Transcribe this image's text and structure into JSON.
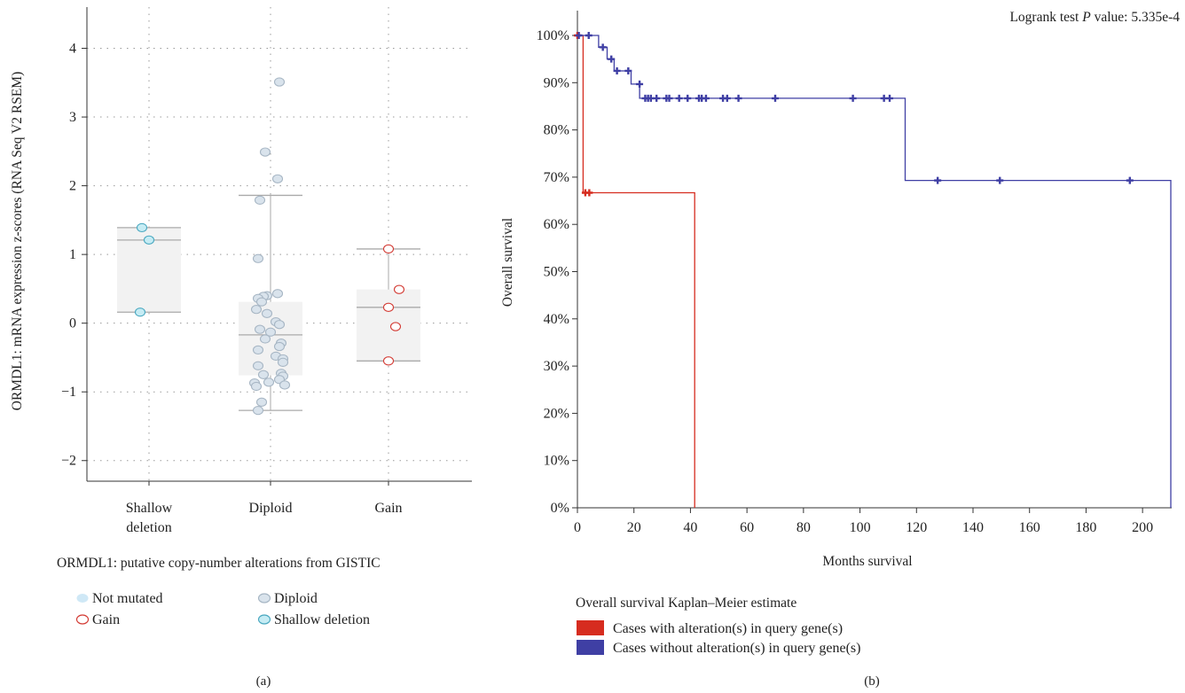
{
  "colors": {
    "shallow_fill": "#c6ecf4",
    "shallow_stroke": "#4aa8c0",
    "diploid_fill": "#d9e3ec",
    "diploid_stroke": "#a7b6c4",
    "notmut_fill": "#cfe8f6",
    "gain_stroke": "#d33b34",
    "altered_line": "#d62c1f",
    "unaltered_line": "#3f3fa4"
  },
  "chart_data": [
    {
      "type": "box",
      "panel_label": "(a)",
      "ylabel": "ORMDL1: mRNA expression z-scores (RNA Seq V2 RSEM)",
      "xlabel": "ORMDL1: putative copy-number alterations from GISTIC",
      "ylim": [
        -2.3,
        4.6
      ],
      "yticks": [
        "−2",
        "−1",
        "0",
        "1",
        "2",
        "3",
        "4"
      ],
      "ytick_values": [
        -2,
        -1,
        0,
        1,
        2,
        3,
        4
      ],
      "categories": [
        "Shallow\ndeletion",
        "Diploid",
        "Gain"
      ],
      "boxes": [
        {
          "whisker_low": 0.16,
          "q1": 0.16,
          "median": 1.21,
          "q3": 1.39,
          "whisker_high": 1.39
        },
        {
          "whisker_low": -1.27,
          "q1": -0.76,
          "median": -0.17,
          "q3": 0.31,
          "whisker_high": 1.86
        },
        {
          "whisker_low": -0.55,
          "q1": -0.55,
          "median": 0.23,
          "q3": 0.49,
          "whisker_high": 1.08
        }
      ],
      "points": [
        {
          "group": 0,
          "series": "shallow",
          "values": [
            1.39,
            1.21,
            0.16
          ],
          "jitter": [
            -0.2,
            0.0,
            -0.25
          ]
        },
        {
          "group": 1,
          "series": "diploid",
          "values": [
            3.51,
            2.49,
            2.1,
            1.79,
            0.94,
            0.43,
            0.4,
            0.39,
            0.36,
            0.31,
            0.2,
            0.14,
            0.02,
            -0.02,
            -0.09,
            -0.13,
            -0.23,
            -0.29,
            -0.34,
            -0.39,
            -0.48,
            -0.52,
            -0.57,
            -0.62,
            -0.73,
            -0.75,
            -0.77,
            -0.82,
            -0.86,
            -0.87,
            -0.9,
            -0.92,
            -1.15,
            -1.27
          ],
          "jitter": [
            0.25,
            -0.15,
            0.2,
            -0.3,
            -0.35,
            0.2,
            -0.1,
            -0.2,
            -0.35,
            -0.25,
            -0.4,
            -0.1,
            0.15,
            0.25,
            -0.3,
            0.0,
            -0.15,
            0.3,
            0.25,
            -0.35,
            0.15,
            0.35,
            0.35,
            -0.35,
            0.3,
            -0.2,
            0.35,
            0.25,
            -0.05,
            -0.45,
            0.4,
            -0.4,
            -0.25,
            -0.35
          ]
        },
        {
          "group": 2,
          "series": "gain",
          "values": [
            1.08,
            0.49,
            0.23,
            -0.05,
            -0.55
          ],
          "jitter": [
            0.0,
            0.3,
            0.0,
            0.2,
            0.0
          ]
        }
      ],
      "legend": [
        {
          "label": "Not mutated",
          "marker": "notmut"
        },
        {
          "label": "Diploid",
          "marker": "diploid"
        },
        {
          "label": "Gain",
          "marker": "gain"
        },
        {
          "label": "Shallow deletion",
          "marker": "shallow"
        }
      ]
    },
    {
      "type": "line",
      "subtype": "kaplan-meier",
      "panel_label": "(b)",
      "ylabel": "Overall survival",
      "xlabel": "Months survival",
      "annotation": {
        "prefix": "Logrank test ",
        "p": "P",
        "suffix": " value: 5.335e-4"
      },
      "xlim": [
        0,
        210
      ],
      "ylim": [
        0,
        100
      ],
      "xticks": [
        0,
        20,
        40,
        60,
        80,
        100,
        120,
        140,
        160,
        180,
        200
      ],
      "yticks": [
        0,
        10,
        20,
        30,
        40,
        50,
        60,
        70,
        80,
        90,
        100
      ],
      "ytick_labels": [
        "0%",
        "10%",
        "20%",
        "30%",
        "40%",
        "50%",
        "60%",
        "70%",
        "80%",
        "90%",
        "100%"
      ],
      "series": [
        {
          "name": "Cases with alteration(s) in query gene(s)",
          "steps": [
            [
              0,
              100
            ],
            [
              2,
              100
            ],
            [
              2,
              66.7
            ],
            [
              41.5,
              66.7
            ],
            [
              41.5,
              0
            ]
          ],
          "censored": [
            [
              0,
              100
            ],
            [
              2.8,
              66.7
            ],
            [
              4.2,
              66.7
            ]
          ]
        },
        {
          "name": "Cases without alteration(s) in query gene(s)",
          "steps": [
            [
              0,
              100
            ],
            [
              7.5,
              100
            ],
            [
              7.5,
              97.5
            ],
            [
              10.5,
              97.5
            ],
            [
              10.5,
              95
            ],
            [
              13,
              95
            ],
            [
              13,
              92.5
            ],
            [
              19,
              92.5
            ],
            [
              19,
              89.7
            ],
            [
              22,
              89.7
            ],
            [
              22,
              86.7
            ],
            [
              116,
              86.7
            ],
            [
              116,
              69.3
            ],
            [
              210,
              69.3
            ],
            [
              210,
              0
            ]
          ],
          "censored": [
            [
              0.5,
              100
            ],
            [
              4,
              100
            ],
            [
              9,
              97.5
            ],
            [
              12,
              95
            ],
            [
              14,
              92.5
            ],
            [
              18,
              92.5
            ],
            [
              22,
              89.7
            ],
            [
              24,
              86.7
            ],
            [
              25,
              86.7
            ],
            [
              26,
              86.7
            ],
            [
              28,
              86.7
            ],
            [
              31.5,
              86.7
            ],
            [
              32.5,
              86.7
            ],
            [
              36,
              86.7
            ],
            [
              39,
              86.7
            ],
            [
              43,
              86.7
            ],
            [
              44,
              86.7
            ],
            [
              45.5,
              86.7
            ],
            [
              51.5,
              86.7
            ],
            [
              53,
              86.7
            ],
            [
              57,
              86.7
            ],
            [
              70,
              86.7
            ],
            [
              97.5,
              86.7
            ],
            [
              108.5,
              86.7
            ],
            [
              110.5,
              86.7
            ],
            [
              127.5,
              69.3
            ],
            [
              149.5,
              69.3
            ],
            [
              195.5,
              69.3
            ]
          ]
        }
      ],
      "legend_title": "Overall survival Kaplan–Meier estimate"
    }
  ]
}
